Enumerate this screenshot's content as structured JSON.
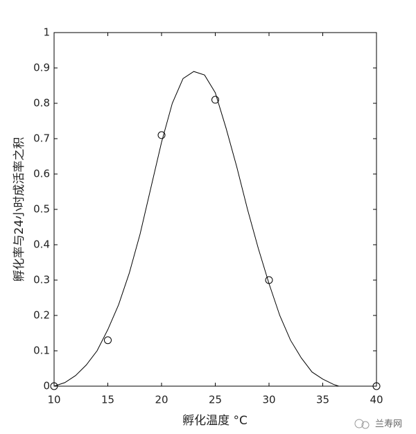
{
  "chart_data": {
    "type": "scatter",
    "xlabel": "孵化温度 °C",
    "ylabel": "孵化率与24小时成活率之积",
    "watermark": "兰寿网",
    "xlim": [
      10,
      40
    ],
    "xticks": [
      10,
      15,
      20,
      25,
      30,
      35,
      40
    ],
    "ylim": [
      0,
      1
    ],
    "yticks": [
      0,
      0.1,
      0.2,
      0.3,
      0.4,
      0.5,
      0.6,
      0.7,
      0.8,
      0.9,
      1
    ],
    "series": [
      {
        "type": "scatter",
        "color": "#000000",
        "x": [
          10,
          15,
          20,
          25,
          30,
          40
        ],
        "values": [
          0,
          0.13,
          0.71,
          0.81,
          0.3,
          0
        ]
      },
      {
        "type": "line",
        "color": "#000000",
        "x": [
          10,
          11,
          12,
          13,
          14,
          15,
          16,
          17,
          18,
          19,
          20,
          21,
          22,
          23,
          24,
          25,
          26,
          27,
          28,
          29,
          30,
          31,
          32,
          33,
          34,
          35,
          36,
          36.5
        ],
        "values": [
          0,
          0.01,
          0.03,
          0.06,
          0.1,
          0.16,
          0.23,
          0.32,
          0.43,
          0.56,
          0.69,
          0.8,
          0.87,
          0.89,
          0.88,
          0.83,
          0.73,
          0.62,
          0.5,
          0.39,
          0.29,
          0.2,
          0.13,
          0.08,
          0.04,
          0.02,
          0.005,
          0
        ]
      }
    ]
  }
}
